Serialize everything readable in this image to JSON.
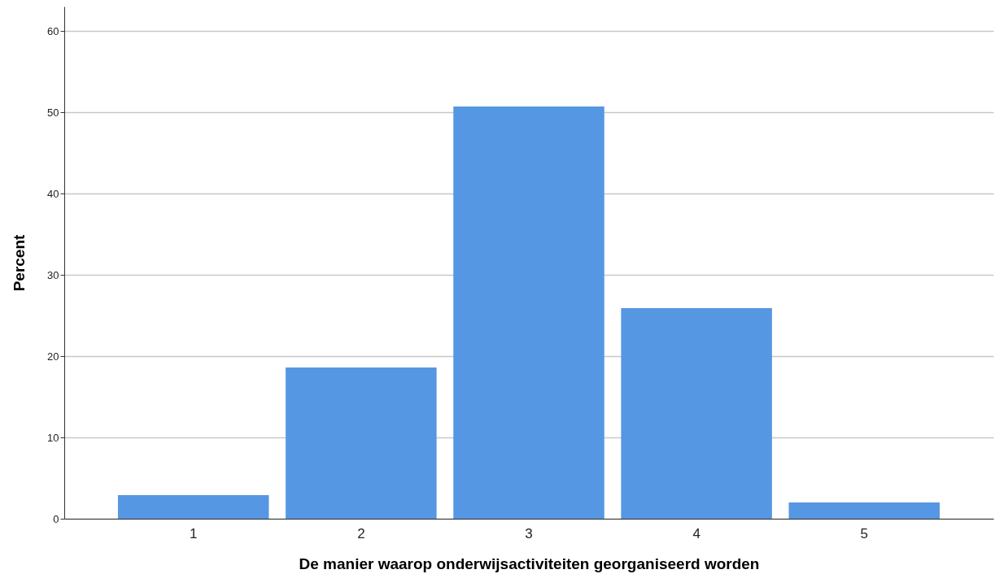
{
  "chart_data": {
    "type": "bar",
    "xlabel": "De manier waarop onderwijsactiviteiten georganiseerd worden",
    "ylabel": "Percent",
    "categories": [
      "1",
      "2",
      "3",
      "4",
      "5"
    ],
    "values": [
      2.9,
      18.6,
      50.7,
      25.9,
      2.0
    ],
    "color": "#5597e2",
    "ylim": [
      0,
      63
    ],
    "yticks": [
      0,
      10,
      20,
      30,
      40,
      50,
      60
    ],
    "grid": "y"
  }
}
